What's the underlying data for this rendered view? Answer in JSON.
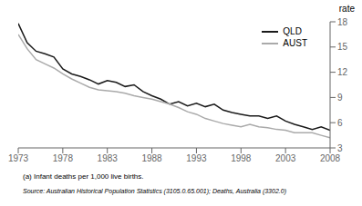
{
  "chart_data": {
    "type": "line",
    "ylabel": "rate",
    "annotations": [
      "(a) Infant deaths per 1,000 live births.",
      "Source: Australian Historical Population Statistics (3105.0.65.001); Deaths, Australia (3302.0)"
    ],
    "x": [
      1973,
      1974,
      1975,
      1976,
      1977,
      1978,
      1979,
      1980,
      1981,
      1982,
      1983,
      1984,
      1985,
      1986,
      1987,
      1988,
      1989,
      1990,
      1991,
      1992,
      1993,
      1994,
      1995,
      1996,
      1997,
      1998,
      1999,
      2000,
      2001,
      2002,
      2003,
      2004,
      2005,
      2006,
      2007,
      2008
    ],
    "series": [
      {
        "name": "QLD",
        "color": "#1a1a1a",
        "values": [
          17.8,
          15.5,
          14.5,
          14.2,
          13.8,
          12.4,
          11.8,
          11.5,
          11.1,
          10.6,
          11.0,
          10.8,
          10.3,
          10.5,
          9.7,
          9.2,
          8.8,
          8.2,
          8.5,
          8.0,
          8.3,
          7.9,
          8.2,
          7.5,
          7.2,
          7.0,
          6.8,
          6.8,
          6.5,
          6.8,
          6.2,
          5.8,
          5.5,
          5.2,
          5.5,
          5.1
        ]
      },
      {
        "name": "AUST",
        "color": "#aaaaaa",
        "values": [
          16.5,
          14.8,
          13.5,
          13.0,
          12.5,
          11.8,
          11.2,
          10.7,
          10.2,
          9.9,
          9.8,
          9.7,
          9.5,
          9.2,
          9.0,
          8.8,
          8.5,
          8.2,
          7.8,
          7.3,
          7.0,
          6.5,
          6.2,
          5.9,
          5.7,
          5.5,
          5.8,
          5.5,
          5.4,
          5.2,
          5.1,
          4.8,
          4.8,
          4.8,
          4.5,
          4.2
        ]
      }
    ],
    "xlim": [
      1973,
      2008
    ],
    "ylim": [
      3,
      18
    ],
    "xticks": [
      1973,
      1978,
      1983,
      1988,
      1993,
      1998,
      2003,
      2008
    ],
    "yticks": [
      3,
      6,
      9,
      12,
      15,
      18
    ],
    "grid": false,
    "legend": "upper right"
  }
}
